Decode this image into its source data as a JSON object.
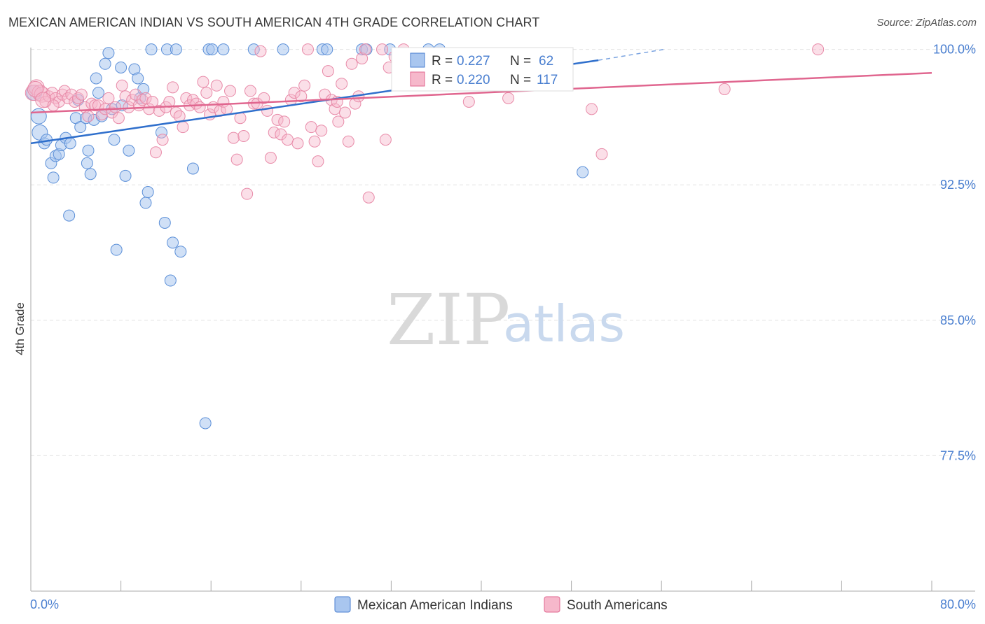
{
  "title": "MEXICAN AMERICAN INDIAN VS SOUTH AMERICAN 4TH GRADE CORRELATION CHART",
  "source": "Source: ZipAtlas.com",
  "watermark": {
    "zip": "ZIP",
    "atlas": "atlas"
  },
  "chart_data": {
    "type": "scatter",
    "title": "MEXICAN AMERICAN INDIAN VS SOUTH AMERICAN 4TH GRADE CORRELATION CHART",
    "xlabel": "",
    "ylabel": "4th Grade",
    "xlim": [
      0,
      80
    ],
    "ylim": [
      70,
      100.8
    ],
    "x_tick_labels": [
      "0.0%",
      "80.0%"
    ],
    "y_ticks": [
      77.5,
      85.0,
      92.5,
      100.0
    ],
    "y_tick_labels": [
      "77.5%",
      "85.0%",
      "92.5%",
      "100.0%"
    ],
    "grid": true,
    "legend_position": "top-center",
    "colors": {
      "blue": "#4a7fd0",
      "blue_fill": "#a9c6ef",
      "pink": "#e0668f",
      "pink_fill": "#f6b8cb"
    },
    "series": [
      {
        "name": "Mexican American Indians",
        "color": "#4a7fd0",
        "R": "0.227",
        "N": "62",
        "trend": {
          "x": [
            0,
            50.4
          ],
          "y": [
            94.8,
            99.4
          ],
          "dashed_to": [
            56.2,
            100.0
          ]
        },
        "points": [
          [
            0.3,
            97.6
          ],
          [
            0.7,
            96.3
          ],
          [
            0.8,
            95.4
          ],
          [
            1.2,
            94.8
          ],
          [
            1.4,
            95.0
          ],
          [
            1.8,
            93.7
          ],
          [
            2.0,
            92.9
          ],
          [
            2.2,
            94.1
          ],
          [
            2.5,
            94.2
          ],
          [
            2.7,
            94.7
          ],
          [
            3.1,
            95.1
          ],
          [
            3.4,
            90.8
          ],
          [
            3.5,
            94.8
          ],
          [
            4.0,
            96.2
          ],
          [
            4.2,
            97.2
          ],
          [
            4.4,
            95.7
          ],
          [
            4.9,
            96.2
          ],
          [
            5.0,
            93.7
          ],
          [
            5.1,
            94.4
          ],
          [
            5.3,
            93.1
          ],
          [
            5.6,
            96.1
          ],
          [
            5.8,
            98.4
          ],
          [
            6.0,
            97.6
          ],
          [
            6.3,
            96.3
          ],
          [
            6.6,
            99.2
          ],
          [
            6.9,
            99.8
          ],
          [
            7.2,
            96.7
          ],
          [
            7.4,
            95.0
          ],
          [
            7.6,
            88.9
          ],
          [
            8.0,
            99.0
          ],
          [
            8.1,
            96.9
          ],
          [
            8.4,
            93.0
          ],
          [
            8.7,
            94.4
          ],
          [
            9.2,
            98.9
          ],
          [
            9.5,
            98.4
          ],
          [
            9.7,
            97.3
          ],
          [
            10.0,
            97.8
          ],
          [
            10.2,
            91.5
          ],
          [
            10.4,
            92.1
          ],
          [
            10.7,
            100.0
          ],
          [
            11.6,
            95.4
          ],
          [
            11.9,
            90.4
          ],
          [
            12.1,
            100.0
          ],
          [
            12.4,
            87.2
          ],
          [
            12.6,
            89.3
          ],
          [
            12.9,
            100.0
          ],
          [
            13.3,
            88.8
          ],
          [
            14.4,
            93.4
          ],
          [
            15.5,
            79.3
          ],
          [
            15.8,
            100.0
          ],
          [
            16.1,
            100.0
          ],
          [
            17.1,
            100.0
          ],
          [
            19.8,
            100.0
          ],
          [
            22.4,
            100.0
          ],
          [
            25.9,
            100.0
          ],
          [
            26.3,
            100.0
          ],
          [
            29.4,
            100.0
          ],
          [
            29.8,
            100.0
          ],
          [
            31.9,
            100.0
          ],
          [
            35.3,
            100.0
          ],
          [
            36.3,
            100.0
          ],
          [
            49.0,
            93.2
          ]
        ]
      },
      {
        "name": "South Americans",
        "color": "#e0668f",
        "R": "0.220",
        "N": "117",
        "trend": {
          "x": [
            0,
            80
          ],
          "y": [
            96.5,
            98.7
          ]
        },
        "points": [
          [
            0.2,
            97.6
          ],
          [
            0.5,
            97.9
          ],
          [
            0.8,
            97.6
          ],
          [
            1.0,
            97.5
          ],
          [
            1.3,
            97.1
          ],
          [
            1.6,
            97.4
          ],
          [
            1.9,
            97.6
          ],
          [
            2.2,
            97.3
          ],
          [
            2.5,
            97.1
          ],
          [
            2.8,
            97.5
          ],
          [
            3.0,
            97.7
          ],
          [
            3.3,
            97.3
          ],
          [
            3.6,
            97.5
          ],
          [
            3.9,
            97.1
          ],
          [
            4.2,
            97.3
          ],
          [
            4.5,
            97.5
          ],
          [
            4.8,
            96.8
          ],
          [
            5.1,
            96.3
          ],
          [
            5.4,
            97.0
          ],
          [
            5.7,
            96.9
          ],
          [
            6.0,
            96.9
          ],
          [
            6.3,
            96.4
          ],
          [
            6.6,
            96.7
          ],
          [
            6.9,
            97.3
          ],
          [
            7.2,
            96.5
          ],
          [
            7.5,
            96.8
          ],
          [
            7.8,
            96.2
          ],
          [
            8.1,
            98.0
          ],
          [
            8.4,
            97.4
          ],
          [
            8.7,
            96.8
          ],
          [
            9.0,
            97.2
          ],
          [
            9.3,
            97.5
          ],
          [
            9.6,
            96.9
          ],
          [
            9.9,
            97.2
          ],
          [
            10.2,
            97.3
          ],
          [
            10.5,
            96.7
          ],
          [
            10.8,
            97.1
          ],
          [
            11.1,
            94.3
          ],
          [
            11.4,
            96.6
          ],
          [
            11.7,
            95.0
          ],
          [
            12.0,
            96.8
          ],
          [
            12.3,
            97.1
          ],
          [
            12.6,
            97.9
          ],
          [
            12.9,
            96.5
          ],
          [
            13.2,
            96.3
          ],
          [
            13.5,
            95.7
          ],
          [
            13.8,
            97.3
          ],
          [
            14.1,
            96.9
          ],
          [
            14.4,
            97.2
          ],
          [
            14.7,
            97.0
          ],
          [
            15.0,
            96.8
          ],
          [
            15.3,
            98.2
          ],
          [
            15.6,
            97.6
          ],
          [
            15.9,
            96.4
          ],
          [
            16.2,
            96.8
          ],
          [
            16.5,
            98.0
          ],
          [
            16.8,
            96.6
          ],
          [
            17.1,
            97.1
          ],
          [
            17.4,
            96.7
          ],
          [
            17.7,
            97.7
          ],
          [
            18.0,
            95.1
          ],
          [
            18.3,
            93.9
          ],
          [
            18.6,
            96.2
          ],
          [
            18.9,
            95.2
          ],
          [
            19.2,
            92.0
          ],
          [
            19.5,
            97.7
          ],
          [
            19.8,
            97.0
          ],
          [
            20.1,
            97.0
          ],
          [
            20.4,
            99.9
          ],
          [
            20.7,
            97.3
          ],
          [
            21.0,
            96.6
          ],
          [
            21.3,
            94.0
          ],
          [
            21.6,
            95.4
          ],
          [
            21.9,
            96.1
          ],
          [
            22.2,
            95.3
          ],
          [
            22.5,
            96.0
          ],
          [
            22.8,
            95.0
          ],
          [
            23.1,
            97.2
          ],
          [
            23.4,
            97.6
          ],
          [
            23.7,
            94.8
          ],
          [
            24.0,
            97.4
          ],
          [
            24.3,
            98.0
          ],
          [
            24.6,
            100.0
          ],
          [
            24.9,
            95.7
          ],
          [
            25.2,
            94.9
          ],
          [
            25.5,
            93.8
          ],
          [
            25.8,
            95.5
          ],
          [
            26.1,
            97.5
          ],
          [
            26.4,
            98.8
          ],
          [
            26.7,
            97.2
          ],
          [
            27.0,
            96.7
          ],
          [
            27.3,
            96.0
          ],
          [
            27.6,
            98.1
          ],
          [
            27.9,
            96.5
          ],
          [
            28.2,
            94.9
          ],
          [
            28.5,
            99.2
          ],
          [
            28.8,
            97.0
          ],
          [
            29.1,
            97.4
          ],
          [
            29.4,
            99.5
          ],
          [
            29.7,
            100.0
          ],
          [
            30.0,
            91.8
          ],
          [
            31.2,
            100.0
          ],
          [
            31.5,
            95.0
          ],
          [
            31.8,
            99.0
          ],
          [
            32.3,
            99.6
          ],
          [
            33.1,
            100.0
          ],
          [
            34.6,
            99.3
          ],
          [
            38.9,
            97.1
          ],
          [
            42.4,
            97.3
          ],
          [
            49.8,
            96.7
          ],
          [
            50.7,
            94.2
          ],
          [
            61.6,
            97.8
          ],
          [
            69.9,
            100.0
          ],
          [
            0.4,
            97.8
          ],
          [
            1.1,
            97.2
          ],
          [
            2.0,
            96.9
          ],
          [
            27.2,
            97.1
          ]
        ]
      }
    ]
  },
  "legend_top": {
    "r_label": "R =",
    "n_label": "N =",
    "rows": [
      {
        "r": "0.227",
        "n": "62"
      },
      {
        "r": "0.220",
        "n": "117"
      }
    ]
  },
  "legend_bottom": [
    "Mexican American Indians",
    "South Americans"
  ]
}
